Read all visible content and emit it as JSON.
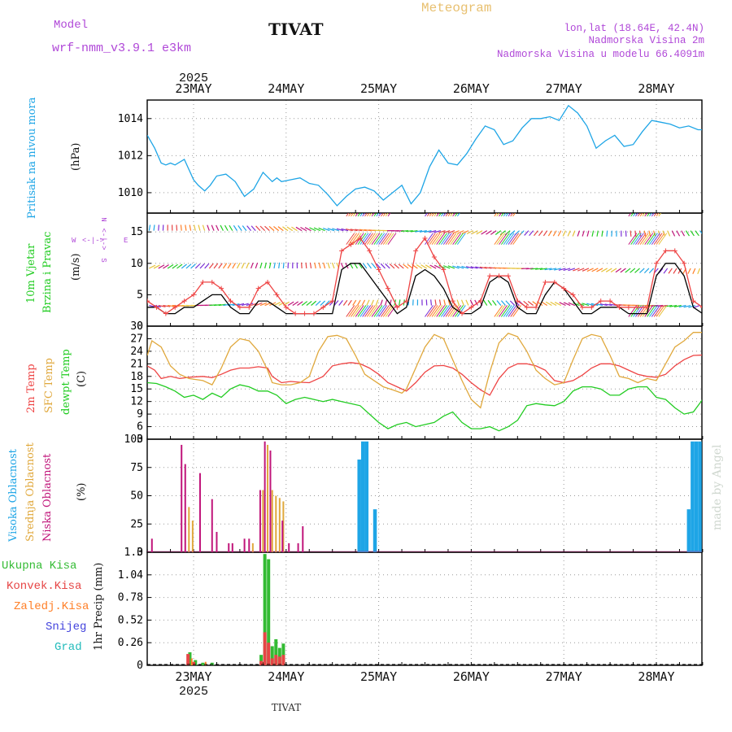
{
  "header": {
    "model_label": "Model",
    "model_name": "wrf-nmm_v3.9.1 e3km",
    "station": "TIVAT",
    "product": "Meteogram",
    "coords": "lon,lat (18.64E, 42.4N)",
    "elevation": "Nadmorska Visina 2m",
    "model_elevation": "Nadmorska Visina u modelu 66.4091m",
    "year": "2025",
    "footer_station": "TIVAT",
    "watermark": "made by Angel"
  },
  "colors": {
    "pressure": "#1ea5e6",
    "temp2m": "#ee4444",
    "sfc": "#e0a83c",
    "dewpt": "#22cc22",
    "high_cloud": "#1ea5e6",
    "mid_cloud": "#e0a83c",
    "low_cloud": "#c0157a",
    "total_rain": "#33bb33",
    "conv_rain": "#e64545",
    "frz_rain": "#ff7f27",
    "snow": "#4444dd",
    "hail": "#22bbbb",
    "title": "#e8c070",
    "model": "#b048d8"
  },
  "chart_data": [
    {
      "id": "pressure",
      "type": "line",
      "ylabel_lines": [
        "Pritisak na nivou mora"
      ],
      "unit": "(hPa)",
      "ylim": [
        1008.9,
        1015
      ],
      "yticks": [
        1010,
        1012,
        1014
      ],
      "x_days": [
        "23MAY",
        "24MAY",
        "25MAY",
        "26MAY",
        "27MAY",
        "28MAY"
      ],
      "series": [
        {
          "name": "Pritisak na nivou mora",
          "color_key": "pressure",
          "t": [
            -0.5,
            -0.42,
            -0.35,
            -0.3,
            -0.25,
            -0.2,
            -0.1,
            0,
            0.05,
            0.12,
            0.18,
            0.25,
            0.35,
            0.45,
            0.55,
            0.65,
            0.75,
            0.85,
            0.9,
            0.95,
            1.05,
            1.15,
            1.25,
            1.35,
            1.45,
            1.55,
            1.65,
            1.75,
            1.85,
            1.95,
            2.05,
            2.15,
            2.25,
            2.35,
            2.45,
            2.55,
            2.65,
            2.75,
            2.85,
            2.95,
            3.05,
            3.15,
            3.25,
            3.35,
            3.45,
            3.55,
            3.65,
            3.75,
            3.85,
            3.95,
            4.05,
            4.15,
            4.25,
            4.35,
            4.45,
            4.55,
            4.65,
            4.75,
            4.85,
            4.95,
            5.05,
            5.15,
            5.25,
            5.35,
            5.45,
            5.5
          ],
          "values": [
            1013.1,
            1012.4,
            1011.6,
            1011.5,
            1011.6,
            1011.5,
            1011.8,
            1010.7,
            1010.4,
            1010.1,
            1010.4,
            1010.9,
            1011.0,
            1010.6,
            1009.8,
            1010.2,
            1011.1,
            1010.6,
            1010.8,
            1010.6,
            1010.7,
            1010.8,
            1010.5,
            1010.4,
            1009.9,
            1009.3,
            1009.8,
            1010.2,
            1010.3,
            1010.1,
            1009.6,
            1010.0,
            1010.4,
            1009.4,
            1010.0,
            1011.4,
            1012.3,
            1011.6,
            1011.5,
            1012.1,
            1012.9,
            1013.6,
            1013.4,
            1012.6,
            1012.8,
            1013.5,
            1014.0,
            1014.0,
            1014.1,
            1013.9,
            1014.7,
            1014.3,
            1013.6,
            1012.4,
            1012.8,
            1013.1,
            1012.5,
            1012.6,
            1013.3,
            1013.9,
            1013.8,
            1013.7,
            1013.5,
            1013.6,
            1013.4,
            1013.4
          ]
        }
      ]
    },
    {
      "id": "wind",
      "type": "line",
      "ylabel_lines": [
        "10m Vjetar",
        "Brzina i Pravac"
      ],
      "unit": "(m/s)",
      "compass": {
        "n": "N",
        "s": "S",
        "w": "W",
        "e": "E",
        "arrow": "<-|->"
      },
      "ylim": [
        0,
        18
      ],
      "yticks": [
        0,
        5,
        10,
        15
      ],
      "levels": [
        3.3,
        9.2,
        15.2
      ],
      "series": [
        {
          "name": "brzina",
          "color": "#000000",
          "t": [
            -0.5,
            -0.4,
            -0.3,
            -0.2,
            -0.1,
            0,
            0.1,
            0.2,
            0.3,
            0.4,
            0.5,
            0.6,
            0.7,
            0.8,
            0.9,
            1.0,
            1.1,
            1.2,
            1.3,
            1.4,
            1.5,
            1.6,
            1.7,
            1.8,
            1.9,
            2.0,
            2.1,
            2.2,
            2.3,
            2.4,
            2.5,
            2.6,
            2.7,
            2.8,
            2.9,
            3.0,
            3.1,
            3.2,
            3.3,
            3.4,
            3.5,
            3.6,
            3.7,
            3.8,
            3.9,
            4.0,
            4.1,
            4.2,
            4.3,
            4.4,
            4.5,
            4.6,
            4.7,
            4.8,
            4.9,
            5.0,
            5.1,
            5.2,
            5.3,
            5.4,
            5.5
          ],
          "values": [
            3,
            3,
            2,
            2,
            3,
            3,
            4,
            5,
            5,
            3,
            2,
            2,
            4,
            4,
            3,
            2,
            2,
            2,
            2,
            2,
            2,
            9,
            10,
            10,
            8,
            6,
            4,
            2,
            3,
            8,
            9,
            8,
            6,
            3,
            2,
            2,
            3,
            7,
            8,
            7,
            3,
            2,
            2,
            5,
            7,
            6,
            4,
            2,
            2,
            3,
            3,
            3,
            2,
            2,
            2,
            8,
            10,
            10,
            8,
            3,
            2
          ]
        },
        {
          "name": "udari",
          "color": "#ee4444",
          "t": [
            -0.5,
            -0.4,
            -0.3,
            -0.2,
            -0.1,
            0,
            0.1,
            0.2,
            0.3,
            0.4,
            0.5,
            0.6,
            0.7,
            0.8,
            0.9,
            1.0,
            1.1,
            1.2,
            1.3,
            1.4,
            1.5,
            1.6,
            1.7,
            1.8,
            1.9,
            2.0,
            2.1,
            2.2,
            2.3,
            2.4,
            2.5,
            2.6,
            2.7,
            2.8,
            2.9,
            3.0,
            3.1,
            3.2,
            3.3,
            3.4,
            3.5,
            3.6,
            3.7,
            3.8,
            3.9,
            4.0,
            4.1,
            4.2,
            4.3,
            4.4,
            4.5,
            4.6,
            4.7,
            4.8,
            4.9,
            5.0,
            5.1,
            5.2,
            5.3,
            5.4,
            5.5
          ],
          "values": [
            4,
            3,
            2,
            3,
            4,
            5,
            7,
            7,
            6,
            4,
            3,
            3,
            6,
            7,
            5,
            3,
            2,
            2,
            2,
            3,
            4,
            12,
            13,
            14,
            12,
            9,
            6,
            3,
            4,
            12,
            14,
            11,
            9,
            4,
            2,
            3,
            4,
            8,
            8,
            8,
            4,
            3,
            3,
            7,
            7,
            6,
            5,
            3,
            3,
            4,
            4,
            3,
            3,
            3,
            3,
            10,
            12,
            12,
            10,
            4,
            3
          ]
        }
      ]
    },
    {
      "id": "temperature",
      "type": "line",
      "ylabel_lines": [
        "2m Temp",
        "SFC Temp",
        "dewpt Temp"
      ],
      "unit": "(C)",
      "ylim": [
        3,
        30
      ],
      "yticks": [
        3,
        6,
        9,
        12,
        15,
        18,
        21,
        24,
        27,
        30
      ],
      "series": [
        {
          "name": "2m Temp",
          "color_key": "temp2m",
          "t": [
            -0.5,
            -0.42,
            -0.35,
            -0.25,
            -0.15,
            -0.05,
            0.1,
            0.2,
            0.3,
            0.4,
            0.5,
            0.6,
            0.7,
            0.8,
            0.85,
            0.95,
            1.05,
            1.15,
            1.25,
            1.4,
            1.5,
            1.6,
            1.7,
            1.8,
            1.9,
            2.0,
            2.1,
            2.2,
            2.3,
            2.4,
            2.5,
            2.6,
            2.7,
            2.8,
            2.9,
            3.0,
            3.1,
            3.2,
            3.3,
            3.4,
            3.5,
            3.6,
            3.7,
            3.8,
            3.9,
            4.0,
            4.1,
            4.2,
            4.3,
            4.4,
            4.5,
            4.6,
            4.7,
            4.8,
            4.9,
            5.0,
            5.1,
            5.2,
            5.3,
            5.4,
            5.5
          ],
          "values": [
            20.5,
            19.5,
            17.5,
            18,
            17.5,
            17.8,
            18,
            17.7,
            18.5,
            19.5,
            20,
            20,
            20.3,
            20,
            18,
            16.5,
            16.8,
            16.6,
            16.5,
            18,
            20.5,
            21,
            21.3,
            21,
            20,
            18.5,
            16.5,
            15.5,
            14.5,
            16.5,
            19,
            20.5,
            20.6,
            20,
            18.5,
            16.5,
            14.8,
            13.5,
            17.5,
            20,
            21,
            21,
            20.5,
            19.5,
            17,
            16.5,
            17,
            18.3,
            20,
            21,
            21,
            20.5,
            19.5,
            18.5,
            18,
            17.8,
            18.5,
            20.5,
            22,
            23,
            23.1
          ]
        },
        {
          "name": "SFC Temp",
          "color_key": "sfc",
          "t": [
            -0.5,
            -0.45,
            -0.35,
            -0.25,
            -0.15,
            -0.05,
            0.1,
            0.2,
            0.3,
            0.4,
            0.5,
            0.6,
            0.7,
            0.8,
            0.85,
            0.95,
            1.05,
            1.15,
            1.25,
            1.35,
            1.45,
            1.55,
            1.65,
            1.75,
            1.85,
            1.95,
            2.05,
            2.15,
            2.25,
            2.3,
            2.4,
            2.5,
            2.6,
            2.7,
            2.8,
            2.9,
            3.0,
            3.1,
            3.2,
            3.3,
            3.4,
            3.5,
            3.6,
            3.7,
            3.8,
            3.9,
            4.0,
            4.1,
            4.2,
            4.3,
            4.4,
            4.5,
            4.6,
            4.7,
            4.8,
            4.9,
            5.0,
            5.1,
            5.2,
            5.3,
            5.4,
            5.5
          ],
          "values": [
            23,
            26.5,
            25,
            20.5,
            18.5,
            17.5,
            17,
            16,
            20,
            25,
            27,
            26.5,
            24,
            19.5,
            16.5,
            16,
            16,
            16.5,
            18,
            24,
            27.5,
            27.8,
            27,
            23,
            18.5,
            17,
            15.5,
            14.8,
            14,
            15,
            20,
            25,
            28,
            27,
            22,
            17,
            12.5,
            10.5,
            19,
            26,
            28.3,
            27.5,
            24,
            19.5,
            17.5,
            16,
            16.5,
            22,
            27,
            28,
            27.5,
            23,
            18,
            17.5,
            16.5,
            17.5,
            17,
            21,
            25,
            26.5,
            28.5,
            28.5
          ]
        },
        {
          "name": "dewpt Temp",
          "color_key": "dewpt",
          "t": [
            -0.5,
            -0.4,
            -0.3,
            -0.2,
            -0.1,
            0,
            0.1,
            0.2,
            0.3,
            0.4,
            0.5,
            0.6,
            0.7,
            0.8,
            0.9,
            1.0,
            1.1,
            1.2,
            1.3,
            1.4,
            1.5,
            1.6,
            1.7,
            1.8,
            1.9,
            2.0,
            2.1,
            2.2,
            2.3,
            2.4,
            2.5,
            2.6,
            2.7,
            2.8,
            2.9,
            3.0,
            3.1,
            3.2,
            3.3,
            3.4,
            3.5,
            3.6,
            3.7,
            3.8,
            3.9,
            4.0,
            4.1,
            4.2,
            4.3,
            4.4,
            4.5,
            4.6,
            4.7,
            4.8,
            4.9,
            5.0,
            5.1,
            5.2,
            5.3,
            5.4,
            5.5
          ],
          "values": [
            16.5,
            16.3,
            15.5,
            14.5,
            13,
            13.5,
            12.5,
            14,
            13,
            15,
            16,
            15.5,
            14.5,
            14.5,
            13.5,
            11.5,
            12.5,
            13,
            12.5,
            12,
            12.5,
            12,
            11.5,
            11,
            9,
            7,
            5.5,
            6.5,
            7,
            6,
            6.5,
            7,
            8.5,
            9.5,
            7,
            5.5,
            5.5,
            6,
            5,
            6,
            7.5,
            11,
            11.5,
            11.2,
            11,
            12,
            14.5,
            15.5,
            15.5,
            15,
            13.5,
            13.5,
            15,
            15.5,
            15.5,
            13,
            12.5,
            10.5,
            9,
            9.5,
            12.5
          ]
        }
      ]
    },
    {
      "id": "clouds",
      "type": "bar",
      "ylabel_lines": [
        "Visoka Oblacnost",
        "Srednja Oblacnost",
        "Niska Oblacnost"
      ],
      "unit": "(%)",
      "ylim": [
        0,
        100
      ],
      "yticks": [
        0,
        25,
        50,
        75,
        100
      ],
      "series": [
        {
          "name": "Visoka Oblacnost",
          "color_key": "high_cloud",
          "t": [
            1.79,
            1.83,
            1.87,
            1.96,
            5.35,
            5.39,
            5.43,
            5.47
          ],
          "values": [
            82,
            98,
            98,
            38,
            38,
            98,
            98,
            98
          ]
        },
        {
          "name": "Srednja Oblacnost",
          "color_key": "mid_cloud",
          "t": [
            -0.05,
            -0.01,
            0.64,
            0.75,
            0.8,
            0.85,
            0.89,
            0.93,
            0.97
          ],
          "values": [
            40,
            28,
            8,
            55,
            95,
            55,
            50,
            48,
            45
          ]
        },
        {
          "name": "Niska Oblacnost",
          "color_key": "low_cloud",
          "t": [
            -0.45,
            -0.13,
            -0.09,
            0.07,
            0.2,
            0.25,
            0.38,
            0.42,
            0.55,
            0.6,
            0.72,
            0.77,
            0.83,
            0.96,
            1.03,
            1.13,
            1.18
          ],
          "values": [
            12,
            95,
            78,
            70,
            47,
            18,
            8,
            8,
            12,
            12,
            55,
            98,
            90,
            28,
            8,
            8,
            23
          ]
        }
      ]
    },
    {
      "id": "precip",
      "type": "bar",
      "ylabel_lines": [
        "1hr Precip (mm)"
      ],
      "unit": "",
      "legend": [
        "Ukupna Kisa",
        "Konvek.Kisa",
        "Zaledj.Kisa",
        "Snijeg",
        "Grad"
      ],
      "ylim": [
        0,
        1.3
      ],
      "yticks": [
        0,
        0.26,
        0.52,
        0.78,
        1.04,
        1.3
      ],
      "series": [
        {
          "name": "Ukupna Kisa",
          "color_key": "total_rain",
          "t": [
            -0.04,
            0.02,
            0.1,
            0.2,
            0.73,
            0.77,
            0.81,
            0.85,
            0.89,
            0.93,
            0.97
          ],
          "values": [
            0.15,
            0.06,
            0.03,
            0.03,
            0.12,
            1.28,
            1.22,
            0.22,
            0.3,
            0.2,
            0.25
          ]
        },
        {
          "name": "Konvek.Kisa",
          "color_key": "conv_rain",
          "t": [
            -0.06,
            0.0,
            0.73,
            0.77,
            0.81,
            0.85,
            0.89,
            0.93,
            0.97
          ],
          "values": [
            0.13,
            0.04,
            0.05,
            0.38,
            0.26,
            0.08,
            0.12,
            0.1,
            0.12
          ]
        },
        {
          "name": "Zaledj.Kisa",
          "color_key": "frz_rain",
          "t": [
            -0.02,
            0.13
          ],
          "values": [
            0.08,
            0.04
          ]
        }
      ]
    }
  ]
}
